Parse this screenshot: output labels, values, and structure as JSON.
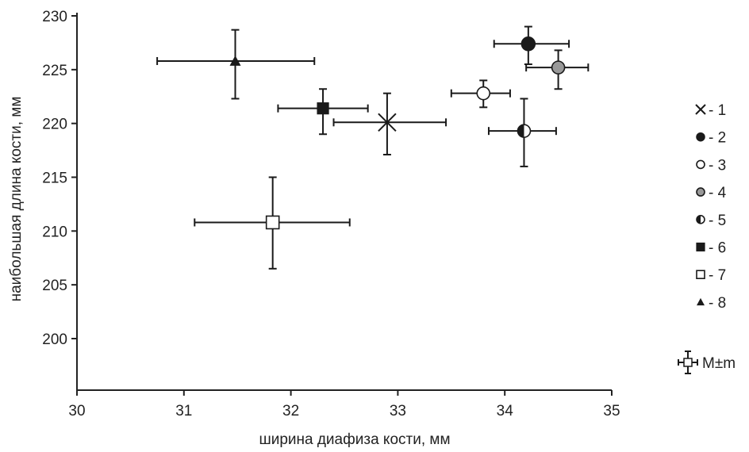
{
  "chart_data": {
    "type": "scatter",
    "xlabel": "ширина диафиза кости, мм",
    "ylabel": "наибольшая длина кости, мм",
    "xlim": [
      30,
      35
    ],
    "ylim": [
      195,
      230
    ],
    "xticks": [
      30,
      31,
      32,
      33,
      34,
      35
    ],
    "yticks": [
      200,
      205,
      210,
      215,
      220,
      225,
      230
    ],
    "grid": false,
    "legend_position": "right",
    "error_bars": true,
    "series": [
      {
        "name": "1",
        "marker": "x",
        "x": 32.9,
        "y": 220.1,
        "x_err": [
          32.4,
          33.45
        ],
        "y_err": [
          217.1,
          222.8
        ]
      },
      {
        "name": "2",
        "marker": "circle-filled",
        "x": 34.22,
        "y": 227.4,
        "x_err": [
          33.9,
          34.6
        ],
        "y_err": [
          225.5,
          229.0
        ]
      },
      {
        "name": "3",
        "marker": "circle-open",
        "x": 33.8,
        "y": 222.8,
        "x_err": [
          33.5,
          34.05
        ],
        "y_err": [
          221.5,
          224.0
        ]
      },
      {
        "name": "4",
        "marker": "circle-gray",
        "x": 34.5,
        "y": 225.2,
        "x_err": [
          34.2,
          34.78
        ],
        "y_err": [
          223.2,
          226.8
        ]
      },
      {
        "name": "5",
        "marker": "circle-half",
        "x": 34.18,
        "y": 219.3,
        "x_err": [
          33.85,
          34.48
        ],
        "y_err": [
          216.0,
          222.3
        ]
      },
      {
        "name": "6",
        "marker": "square-filled",
        "x": 32.3,
        "y": 221.4,
        "x_err": [
          31.88,
          32.72
        ],
        "y_err": [
          219.0,
          223.2
        ]
      },
      {
        "name": "7",
        "marker": "square-open",
        "x": 31.83,
        "y": 210.8,
        "x_err": [
          31.1,
          32.55
        ],
        "y_err": [
          206.5,
          215.0
        ]
      },
      {
        "name": "8",
        "marker": "triangle-filled",
        "x": 31.48,
        "y": 225.8,
        "x_err": [
          30.75,
          32.22
        ],
        "y_err": [
          222.3,
          228.7
        ]
      }
    ],
    "legend": [
      {
        "label": "- 1",
        "marker": "x"
      },
      {
        "label": "- 2",
        "marker": "circle-filled"
      },
      {
        "label": "- 3",
        "marker": "circle-open"
      },
      {
        "label": "- 4",
        "marker": "circle-gray"
      },
      {
        "label": "- 5",
        "marker": "circle-half"
      },
      {
        "label": "- 6",
        "marker": "square-filled"
      },
      {
        "label": "- 7",
        "marker": "square-open"
      },
      {
        "label": "- 8",
        "marker": "triangle-filled"
      }
    ],
    "error_key_label": "M±m",
    "colors": {
      "axis": "#222222",
      "ink": "#1a1a1a",
      "gray_marker": "#999999",
      "open_fill": "#ffffff"
    }
  }
}
